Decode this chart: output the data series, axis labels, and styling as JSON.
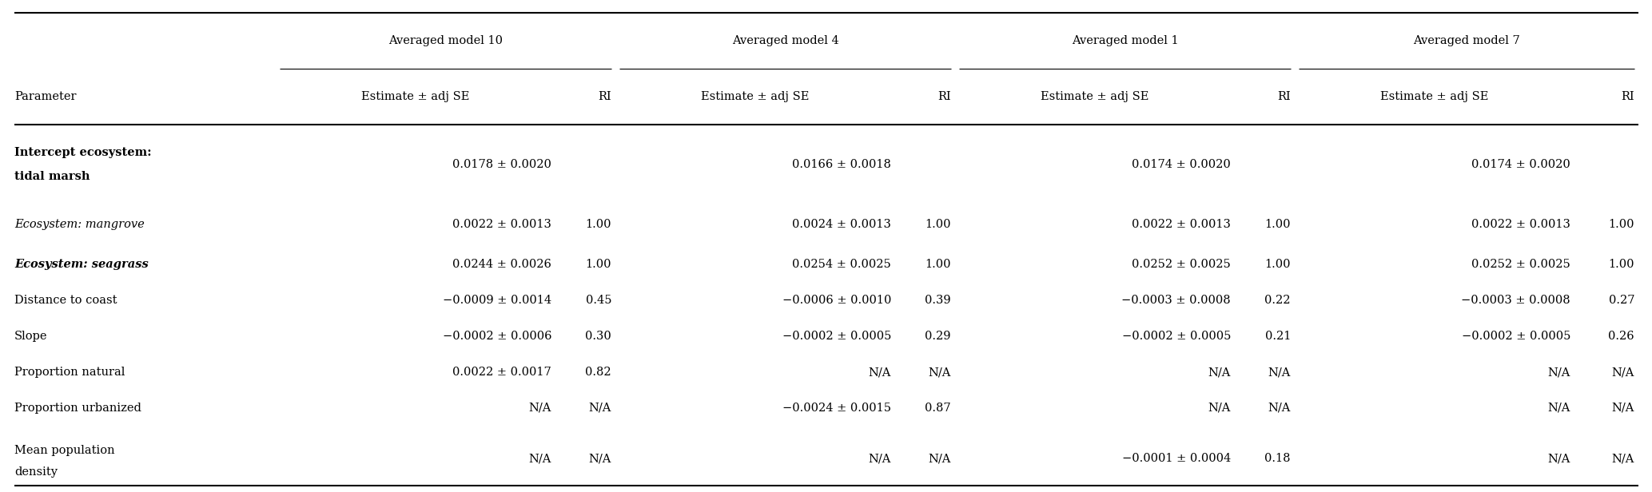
{
  "group_headers": [
    "Averaged model 10",
    "Averaged model 4",
    "Averaged model 1",
    "Averaged model 7"
  ],
  "col_headers_sub": [
    "Parameter",
    "Estimate ± adj SE",
    "RI",
    "Estimate ± adj SE",
    "RI",
    "Estimate ± adj SE",
    "RI",
    "Estimate ± adj SE",
    "RI"
  ],
  "rows": [
    {
      "param": "Intercept ecosystem:\ntidal marsh",
      "style": "bold",
      "values": [
        "0.0178 ± 0.0020",
        "",
        "0.0166 ± 0.0018",
        "",
        "0.0174 ± 0.0020",
        "",
        "0.0174 ± 0.0020",
        ""
      ]
    },
    {
      "param": "Ecosystem: mangrove",
      "style": "italic",
      "values": [
        "0.0022 ± 0.0013",
        "1.00",
        "0.0024 ± 0.0013",
        "1.00",
        "0.0022 ± 0.0013",
        "1.00",
        "0.0022 ± 0.0013",
        "1.00"
      ]
    },
    {
      "param": "Ecosystem: seagrass",
      "style": "bold-italic",
      "values": [
        "0.0244 ± 0.0026",
        "1.00",
        "0.0254 ± 0.0025",
        "1.00",
        "0.0252 ± 0.0025",
        "1.00",
        "0.0252 ± 0.0025",
        "1.00"
      ]
    },
    {
      "param": "Distance to coast",
      "style": "normal",
      "values": [
        "−0.0009 ± 0.0014",
        "0.45",
        "−0.0006 ± 0.0010",
        "0.39",
        "−0.0003 ± 0.0008",
        "0.22",
        "−0.0003 ± 0.0008",
        "0.27"
      ]
    },
    {
      "param": "Slope",
      "style": "normal",
      "values": [
        "−0.0002 ± 0.0006",
        "0.30",
        "−0.0002 ± 0.0005",
        "0.29",
        "−0.0002 ± 0.0005",
        "0.21",
        "−0.0002 ± 0.0005",
        "0.26"
      ]
    },
    {
      "param": "Proportion natural",
      "style": "normal",
      "values": [
        "0.0022 ± 0.0017",
        "0.82",
        "N/A",
        "N/A",
        "N/A",
        "N/A",
        "N/A",
        "N/A"
      ]
    },
    {
      "param": "Proportion urbanized",
      "style": "normal",
      "values": [
        "N/A",
        "N/A",
        "−0.0024 ± 0.0015",
        "0.87",
        "N/A",
        "N/A",
        "N/A",
        "N/A"
      ]
    },
    {
      "param": "Mean population\ndensity",
      "style": "normal",
      "values": [
        "N/A",
        "N/A",
        "N/A",
        "N/A",
        "−0.0001 ± 0.0004",
        "0.18",
        "N/A",
        "N/A"
      ]
    }
  ],
  "bg_color": "#ffffff",
  "text_color": "#000000",
  "line_color": "#000000",
  "fontsize": 10.5,
  "header_fontsize": 10.5,
  "fig_width": 20.67,
  "fig_height": 6.16,
  "dpi": 100
}
